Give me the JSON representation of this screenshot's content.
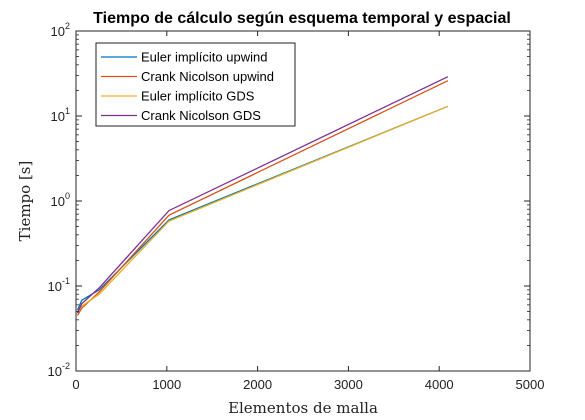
{
  "chart_data": {
    "type": "line",
    "title": "Tiempo de cálculo según esquema temporal y espacial",
    "xlabel": "Elementos de malla",
    "ylabel": "Tiempo [s]",
    "xlim": [
      0,
      5000
    ],
    "ylim": [
      0.01,
      100
    ],
    "yscale": "log",
    "xticks": [
      "0",
      "1000",
      "2000",
      "3000",
      "4000",
      "5000"
    ],
    "yticks": [
      {
        "base": "10",
        "exp": "-2"
      },
      {
        "base": "10",
        "exp": "-1"
      },
      {
        "base": "10",
        "exp": "0"
      },
      {
        "base": "10",
        "exp": "1"
      },
      {
        "base": "10",
        "exp": "2"
      }
    ],
    "grid": false,
    "legend_position": "top-left",
    "series": [
      {
        "name": "Euler implícito upwind",
        "color": "#0072BD",
        "x": [
          16,
          64,
          256,
          1024,
          4096
        ],
        "y": [
          0.052,
          0.068,
          0.09,
          0.6,
          13.0
        ]
      },
      {
        "name": "Crank Nicolson upwind",
        "color": "#D95319",
        "x": [
          16,
          64,
          256,
          1024,
          4096
        ],
        "y": [
          0.045,
          0.055,
          0.085,
          0.68,
          26.0
        ]
      },
      {
        "name": "Euler implícito GDS",
        "color": "#EDB120",
        "x": [
          16,
          64,
          256,
          1024,
          4096
        ],
        "y": [
          0.05,
          0.058,
          0.08,
          0.58,
          13.0
        ]
      },
      {
        "name": "Crank Nicolson GDS",
        "color": "#7E2F8E",
        "x": [
          16,
          64,
          256,
          1024,
          4096
        ],
        "y": [
          0.048,
          0.062,
          0.095,
          0.77,
          29.0
        ]
      }
    ]
  }
}
